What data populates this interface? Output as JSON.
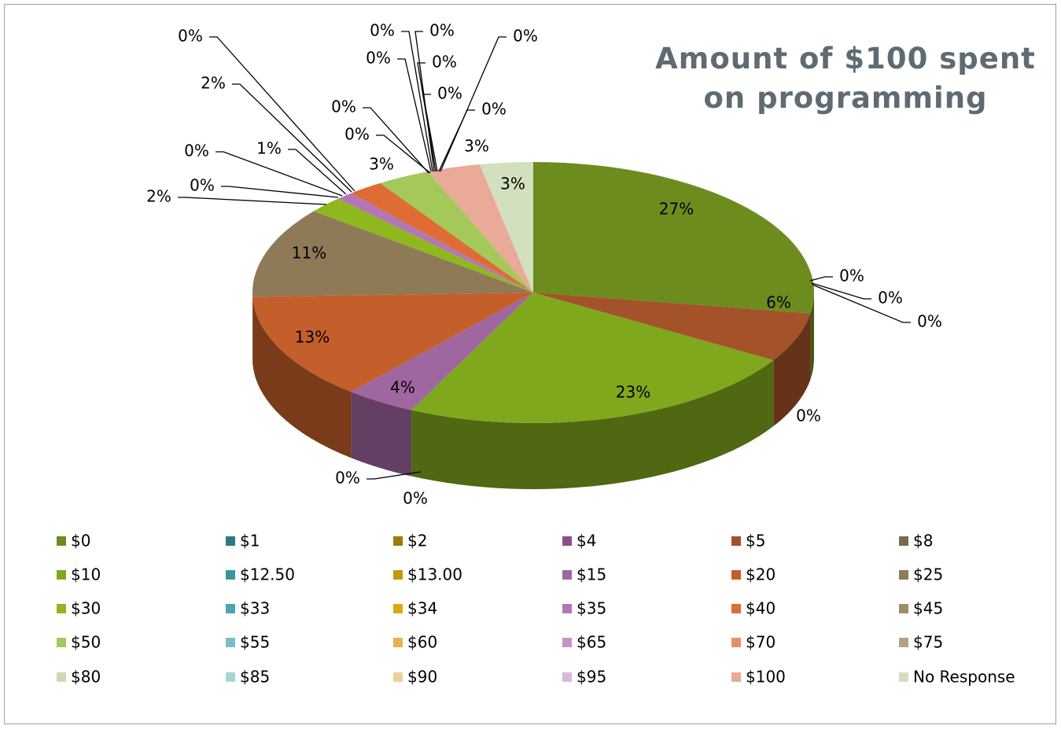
{
  "chart_data": {
    "type": "pie3d",
    "title": "Amount of $100 spent on programming",
    "categories": [
      "$0",
      "$1",
      "$2",
      "$4",
      "$5",
      "$8",
      "$10",
      "$12.50",
      "$13.00",
      "$15",
      "$20",
      "$25",
      "$30",
      "$33",
      "$34",
      "$35",
      "$40",
      "$45",
      "$50",
      "$55",
      "$60",
      "$65",
      "$70",
      "$75",
      "$80",
      "$85",
      "$90",
      "$95",
      "$100",
      "No Response"
    ],
    "values": [
      27,
      0,
      0,
      0,
      6,
      0,
      23,
      0,
      0,
      4,
      13,
      11,
      2,
      0,
      0,
      1,
      2,
      0,
      3,
      0,
      0,
      0,
      0,
      0,
      0,
      0,
      0,
      0,
      3,
      3
    ],
    "value_labels": [
      "27%",
      "0%",
      "0%",
      "0%",
      "6%",
      "0%",
      "23%",
      "0%",
      "0%",
      "4%",
      "13%",
      "11%",
      "2%",
      "0%",
      "0%",
      "1%",
      "2%",
      "0%",
      "3%",
      "0%",
      "0%",
      "0%",
      "0%",
      "0%",
      "0%",
      "0%",
      "0%",
      "0%",
      "3%",
      "3%"
    ],
    "colors": [
      "#6d8c1e",
      "#2e7a82",
      "#9a7a0a",
      "#8a4f8a",
      "#a3522a",
      "#7a6a4a",
      "#7fa81c",
      "#3b939c",
      "#c09a0c",
      "#a066a0",
      "#c45f2c",
      "#8e7a56",
      "#8fb81e",
      "#4aa6ae",
      "#dca812",
      "#b476b4",
      "#de6c34",
      "#a08c66",
      "#a5c85a",
      "#7bbec3",
      "#e4b450",
      "#c594c5",
      "#e48f6a",
      "#b4a284",
      "#cbdcb0",
      "#a9d4d7",
      "#efcf9c",
      "#d8b9d8",
      "#e9aa98",
      "#d2e0bf"
    ],
    "legend": "bottom"
  }
}
